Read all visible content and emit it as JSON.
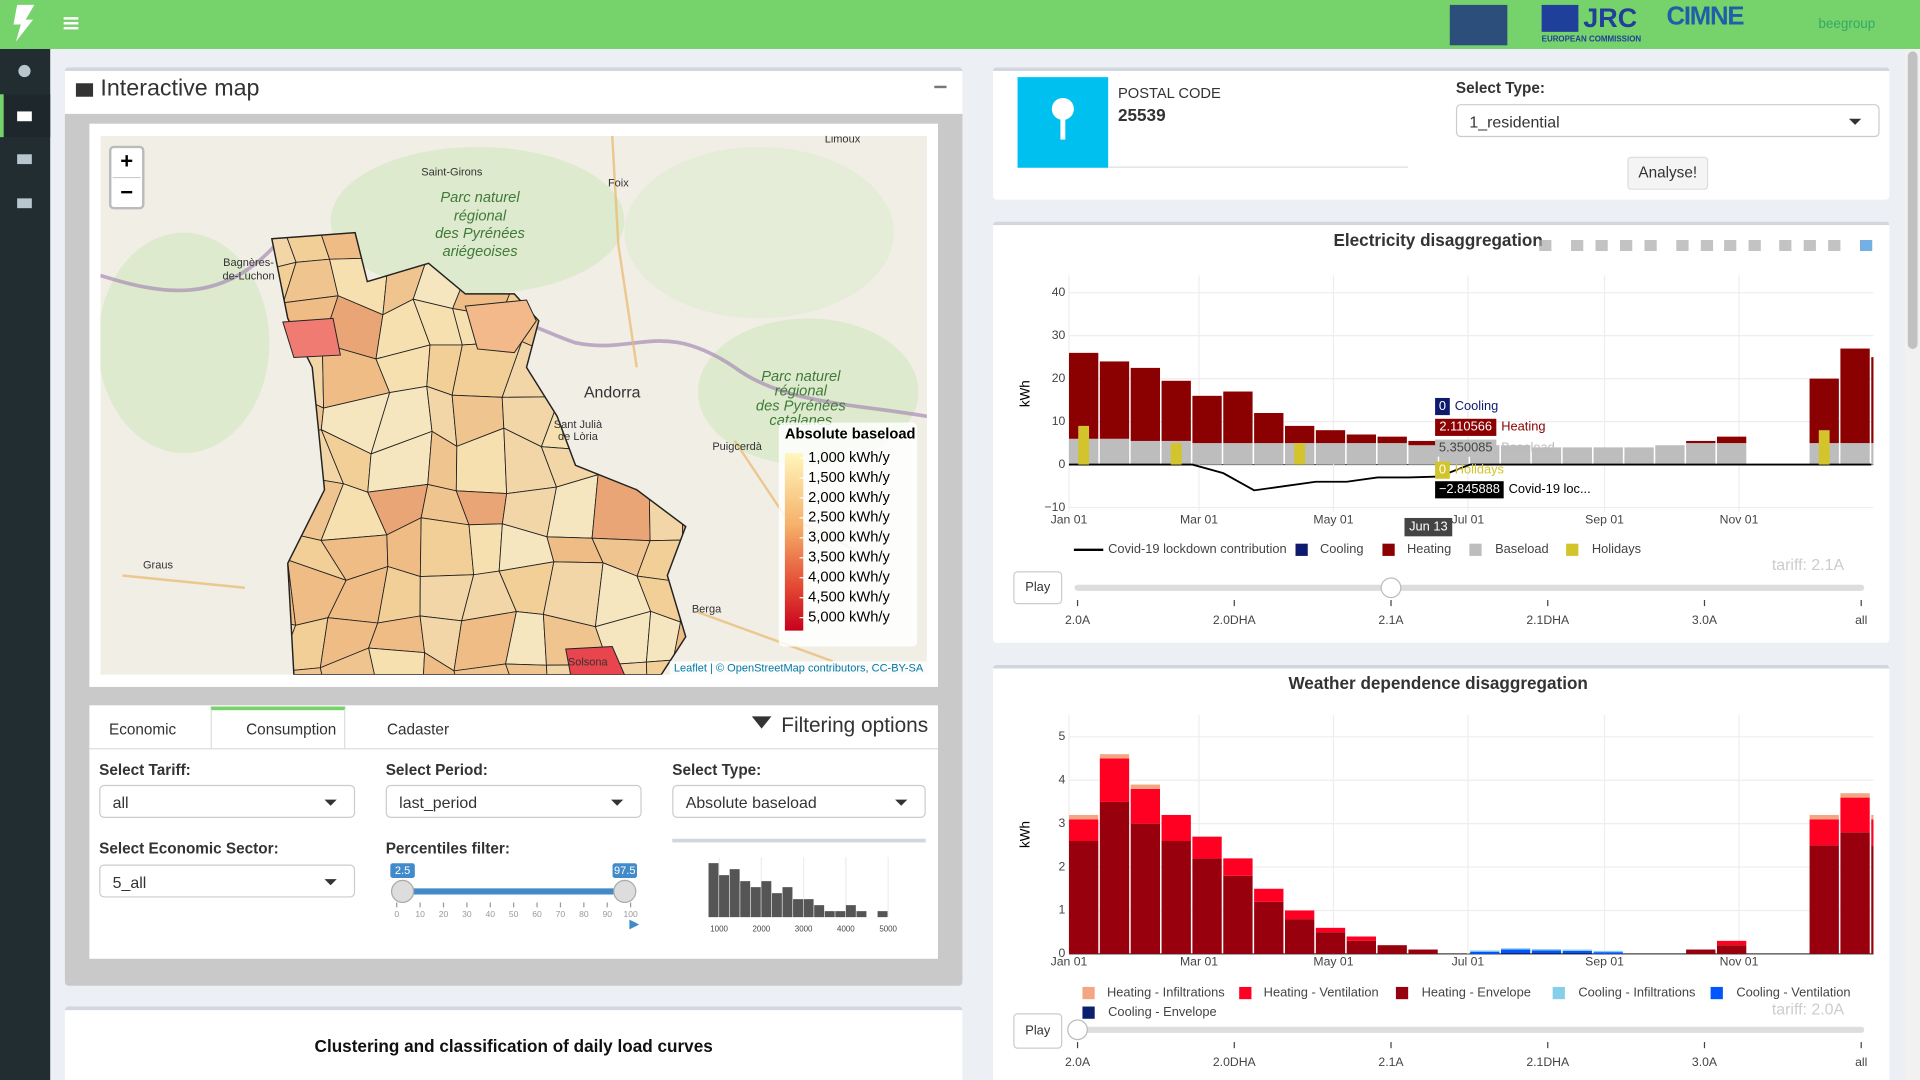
{
  "header": {
    "logos": [
      "JRC",
      "EUROPEAN COMMISSION",
      "CIMNE",
      "beegroup"
    ]
  },
  "map_panel": {
    "title": "Interactive map",
    "zoom": [
      "+",
      "−"
    ],
    "places": [
      "Limoux",
      "Saint-Girons",
      "Foix",
      "Parc naturel",
      "régional",
      "des Pyrénées",
      "ariégeoises",
      "Bagnères-",
      "de-Luchon",
      "Andorra",
      "Sant Julià",
      "de Lòria",
      "Puigcerdà",
      "Parc naturel",
      "régional",
      "des Pyrénées",
      "catalanes",
      "Graus",
      "Berga",
      "Solsona"
    ],
    "legend_title": "Absolute baseload",
    "legend_labels": [
      "1,000 kWh/y",
      "1,500 kWh/y",
      "2,000 kWh/y",
      "2,500 kWh/y",
      "3,000 kWh/y",
      "3,500 kWh/y",
      "4,000 kWh/y",
      "4,500 kWh/y",
      "5,000 kWh/y"
    ],
    "attribution": "Leaflet | © OpenStreetMap contributors, CC-BY-SA"
  },
  "filters": {
    "tabs": [
      "Economic",
      "Consumption",
      "Cadaster"
    ],
    "heading": "Filtering options",
    "fields": [
      {
        "label": "Select Tariff:",
        "value": "all"
      },
      {
        "label": "Select Period:",
        "value": "last_period"
      },
      {
        "label": "Select Type:",
        "value": "Absolute baseload"
      },
      {
        "label": "Select Economic Sector:",
        "value": "5_all"
      }
    ],
    "percentiles": {
      "label": "Percentiles filter:",
      "range": [
        2.5,
        97.5
      ],
      "lim": [
        0,
        100
      ],
      "ticks": [
        0,
        10,
        20,
        30,
        40,
        50,
        60,
        70,
        80,
        90,
        100
      ]
    }
  },
  "clustering_title": "Clustering and classification of daily load curves",
  "postal": {
    "label": "POSTAL CODE",
    "code": "25539",
    "type_label": "Select Type:",
    "type_value": "1_residential",
    "button": "Analyse!"
  },
  "chart_data": [
    {
      "type": "bar",
      "title": "Electricity disaggregation",
      "y_label": "kWh",
      "stacked": true,
      "grid": true,
      "x": [
        0,
        14,
        28,
        42,
        56,
        70,
        84,
        98,
        112,
        126,
        140,
        154,
        168,
        182,
        196,
        210,
        224,
        238,
        252,
        266,
        280,
        294,
        308,
        322,
        336,
        350,
        364
      ],
      "xlim": [
        0,
        365
      ],
      "xticks": [
        {
          "value": 0,
          "label": "Jan 01"
        },
        {
          "value": 59,
          "label": "Mar 01"
        },
        {
          "value": 120,
          "label": "May 01"
        },
        {
          "value": 181,
          "label": "Jul 01"
        },
        {
          "value": 243,
          "label": "Sep 01"
        },
        {
          "value": 304,
          "label": "Nov 01"
        }
      ],
      "ylim": [
        -11,
        44
      ],
      "yticks": [
        {
          "value": -10,
          "label": "−10"
        },
        0,
        10,
        20,
        30,
        40
      ],
      "series": [
        {
          "name": "Covid-19 lockdown contribution",
          "type": "line",
          "color": "#000000",
          "values": [
            0,
            0,
            0,
            0,
            0,
            -2,
            -6,
            -5,
            -4,
            -4,
            -3,
            -3,
            -2.8,
            0,
            0,
            0,
            0,
            0,
            0,
            0,
            0,
            0,
            0,
            0,
            0,
            0,
            0
          ]
        },
        {
          "name": "Cooling",
          "type": "bar",
          "color": "#0d1a6e",
          "values": [
            0,
            0,
            0,
            0,
            0,
            0,
            0,
            0,
            0,
            0,
            0,
            0,
            0,
            0,
            0,
            0,
            0,
            0,
            0,
            0,
            0,
            0,
            0,
            0,
            0,
            0,
            0
          ]
        },
        {
          "name": "Heating",
          "type": "bar",
          "color": "#8b0000",
          "values": [
            20,
            18,
            17,
            14,
            11,
            12,
            7,
            4,
            3,
            2,
            1.5,
            1,
            0.5,
            0,
            0,
            0,
            0,
            0,
            0,
            0,
            0.5,
            1.5,
            0,
            0,
            15,
            22,
            20
          ]
        },
        {
          "name": "Baseload",
          "type": "bar",
          "color": "#bdbdbd",
          "values": [
            6,
            6,
            5.5,
            5.5,
            5,
            5,
            5,
            5,
            5,
            5,
            5,
            4.5,
            4.5,
            4.5,
            4.5,
            4,
            4,
            4,
            4,
            4.5,
            5,
            5,
            0,
            0,
            5,
            5,
            5
          ]
        },
        {
          "name": "Holidays",
          "type": "bar",
          "overlay": true,
          "color": "#d4c42b",
          "values": [
            9,
            0,
            0,
            5,
            0,
            0,
            0,
            5,
            0,
            0,
            0,
            0,
            0,
            0,
            0,
            0,
            0,
            0,
            0,
            0,
            0,
            0,
            0,
            0,
            8,
            0,
            9
          ]
        }
      ],
      "hover": {
        "x_label": "Jun 13",
        "names": [
          "Cooling",
          "Heating",
          "Baseload",
          "Holidays",
          "Covid-19 loc..."
        ],
        "values": [
          0,
          2.110566,
          5.350085,
          0,
          -2.845888
        ],
        "value_labels": [
          "0",
          "2.110566",
          "5.350085",
          "0",
          "−2.845888"
        ]
      },
      "slider": {
        "button": "Play",
        "steps": [
          "2.0A",
          "2.0DHA",
          "2.1A",
          "2.1DHA",
          "3.0A",
          "all"
        ],
        "active": 2,
        "current": "tariff: 2.1A"
      }
    },
    {
      "type": "bar",
      "title": "Weather dependence disaggregation",
      "y_label": "kWh",
      "stacked": true,
      "grid": true,
      "x": [
        0,
        14,
        28,
        42,
        56,
        70,
        84,
        98,
        112,
        126,
        140,
        154,
        168,
        182,
        196,
        210,
        224,
        238,
        252,
        266,
        280,
        294,
        308,
        322,
        336,
        350,
        364
      ],
      "xlim": [
        0,
        365
      ],
      "xticks": [
        {
          "value": 0,
          "label": "Jan 01"
        },
        {
          "value": 59,
          "label": "Mar 01"
        },
        {
          "value": 120,
          "label": "May 01"
        },
        {
          "value": 181,
          "label": "Jul 01"
        },
        {
          "value": 243,
          "label": "Sep 01"
        },
        {
          "value": 304,
          "label": "Nov 01"
        }
      ],
      "ylim": [
        0,
        5.5
      ],
      "yticks": [
        0,
        1,
        2,
        3,
        4,
        5
      ],
      "series": [
        {
          "name": "Heating - Infiltrations",
          "type": "bar",
          "color": "#f4a582",
          "values": [
            0.1,
            0.1,
            0.1,
            0,
            0,
            0,
            0,
            0,
            0,
            0,
            0,
            0,
            0,
            0,
            0,
            0,
            0,
            0,
            0,
            0,
            0,
            0,
            0,
            0,
            0.1,
            0.1,
            0.1
          ]
        },
        {
          "name": "Heating - Ventilation",
          "type": "bar",
          "color": "#ff0022",
          "values": [
            0.5,
            1,
            0.8,
            0.6,
            0.5,
            0.4,
            0.3,
            0.2,
            0.1,
            0.1,
            0,
            0,
            0,
            0,
            0,
            0,
            0,
            0,
            0,
            0,
            0,
            0.1,
            0,
            0,
            0.6,
            0.8,
            0.6
          ]
        },
        {
          "name": "Heating - Envelope",
          "type": "bar",
          "color": "#99000d",
          "values": [
            2.6,
            3.5,
            3,
            2.6,
            2.2,
            1.8,
            1.2,
            0.8,
            0.5,
            0.3,
            0.2,
            0.1,
            0,
            0,
            0,
            0,
            0,
            0,
            0,
            0,
            0.1,
            0.2,
            0,
            0,
            2.5,
            2.8,
            2.5
          ]
        },
        {
          "name": "Cooling - Infiltrations",
          "type": "bar",
          "color": "#87ceeb",
          "values": [
            0,
            0,
            0,
            0,
            0,
            0,
            0,
            0,
            0,
            0,
            0,
            0,
            0,
            0.03,
            0.03,
            0.03,
            0.03,
            0.03,
            0,
            0,
            0,
            0,
            0,
            0,
            0,
            0,
            0
          ]
        },
        {
          "name": "Cooling - Ventilation",
          "type": "bar",
          "color": "#0055ff",
          "values": [
            0,
            0,
            0,
            0,
            0,
            0,
            0,
            0,
            0,
            0,
            0,
            0,
            0,
            0.05,
            0.08,
            0.06,
            0.05,
            0.04,
            0,
            0,
            0,
            0,
            0,
            0,
            0,
            0,
            0
          ]
        },
        {
          "name": "Cooling - Envelope",
          "type": "bar",
          "color": "#0a1f6e",
          "values": [
            0,
            0,
            0,
            0,
            0,
            0,
            0,
            0,
            0,
            0,
            0,
            0,
            0,
            0,
            0.02,
            0.02,
            0.02,
            0,
            0,
            0,
            0,
            0,
            0,
            0,
            0,
            0,
            0
          ]
        }
      ],
      "slider": {
        "button": "Play",
        "steps": [
          "2.0A",
          "2.0DHA",
          "2.1A",
          "2.1DHA",
          "3.0A",
          "all"
        ],
        "active": 0,
        "current": "tariff: 2.0A"
      }
    },
    {
      "type": "histogram",
      "bins": [
        750,
        1000,
        1250,
        1500,
        1750,
        2000,
        2250,
        2500,
        2750,
        3000,
        3250,
        3500,
        3750,
        4000,
        4250,
        4500,
        4750,
        5000,
        5250
      ],
      "values": [
        9,
        7,
        8,
        6,
        5,
        6,
        4,
        5,
        3,
        3,
        2,
        1,
        1,
        2,
        1,
        0,
        1,
        0
      ],
      "color": "#555555",
      "grid": true,
      "xlim": [
        500,
        5570
      ],
      "xticks": [
        1000,
        2000,
        3000,
        4000,
        5000
      ],
      "ylim": [
        0,
        10
      ]
    }
  ]
}
